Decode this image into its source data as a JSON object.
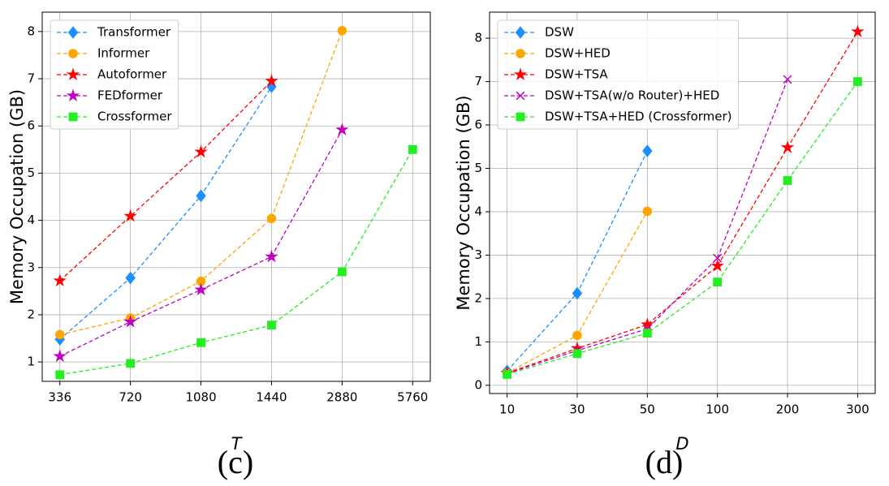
{
  "chart_data": [
    {
      "type": "line",
      "caption": "(c)",
      "xlabel": "T",
      "ylabel": "Memory Occupation (GB)",
      "categories": [
        "336",
        "720",
        "1080",
        "1440",
        "2880",
        "5760"
      ],
      "ylim": [
        0.59,
        8.41
      ],
      "yticks": [
        1,
        2,
        3,
        4,
        5,
        6,
        7,
        8
      ],
      "grid": true,
      "legend": "upper left",
      "series": [
        {
          "name": "Transformer",
          "color": "#1e8fff",
          "marker": "diamond",
          "values": [
            1.48,
            2.78,
            4.52,
            6.83,
            null,
            null
          ]
        },
        {
          "name": "Informer",
          "color": "#ffa500",
          "marker": "circle",
          "values": [
            1.58,
            1.93,
            2.71,
            4.04,
            8.02,
            null
          ]
        },
        {
          "name": "Autoformer",
          "color": "#ff0000",
          "marker": "star",
          "values": [
            2.72,
            4.09,
            5.45,
            6.95,
            null,
            null
          ]
        },
        {
          "name": "FEDformer",
          "color": "#c000c0",
          "marker": "star",
          "values": [
            1.12,
            1.85,
            2.53,
            3.23,
            5.92,
            null
          ]
        },
        {
          "name": "Crossformer",
          "color": "#22ee22",
          "marker": "square",
          "values": [
            0.73,
            0.97,
            1.41,
            1.78,
            2.91,
            5.5
          ]
        }
      ]
    },
    {
      "type": "line",
      "caption": "(d)",
      "xlabel": "D",
      "ylabel": "Memory Occupation (GB)",
      "categories": [
        "10",
        "30",
        "50",
        "100",
        "200",
        "300"
      ],
      "ylim": [
        -0.19,
        8.6
      ],
      "yticks": [
        0,
        1,
        2,
        3,
        4,
        5,
        6,
        7,
        8
      ],
      "grid": true,
      "legend": "upper left",
      "series": [
        {
          "name": "DSW",
          "color": "#1e8fff",
          "marker": "diamond",
          "values": [
            0.33,
            2.12,
            5.4,
            null,
            null,
            null
          ]
        },
        {
          "name": "DSW+HED",
          "color": "#ffa500",
          "marker": "circle",
          "values": [
            0.28,
            1.15,
            4.01,
            null,
            null,
            null
          ]
        },
        {
          "name": "DSW+TSA",
          "color": "#ff0000",
          "marker": "star",
          "values": [
            0.28,
            0.85,
            1.4,
            2.75,
            5.48,
            8.15
          ]
        },
        {
          "name": "DSW+TSA(w/o Router)+HED",
          "color": "#c000c0",
          "marker": "x",
          "values": [
            0.27,
            0.8,
            1.3,
            2.93,
            7.05,
            null
          ]
        },
        {
          "name": "DSW+TSA+HED (Crossformer)",
          "color": "#22ee22",
          "marker": "square",
          "values": [
            0.25,
            0.73,
            1.2,
            2.38,
            4.72,
            7.0
          ]
        }
      ]
    }
  ]
}
